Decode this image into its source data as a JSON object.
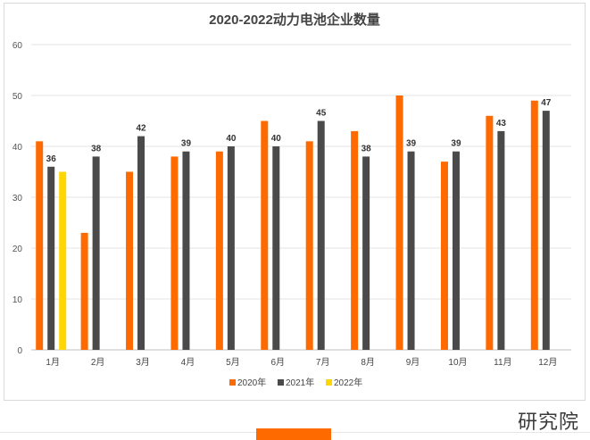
{
  "footer": {
    "brand_text": "研究院"
  },
  "chart_data": {
    "type": "bar",
    "title": "2020-2022动力电池企业数量",
    "categories": [
      "1月",
      "2月",
      "3月",
      "4月",
      "5月",
      "6月",
      "7月",
      "8月",
      "9月",
      "10月",
      "11月",
      "12月"
    ],
    "ylim": [
      0,
      60
    ],
    "yticks": [
      0,
      10,
      20,
      30,
      40,
      50,
      60
    ],
    "grid": true,
    "legend_position": "bottom",
    "series": [
      {
        "name": "2020年",
        "color": "#ff6a00",
        "labeled": false,
        "values": [
          41,
          23,
          35,
          38,
          39,
          45,
          41,
          43,
          50,
          37,
          46,
          49
        ]
      },
      {
        "name": "2021年",
        "color": "#4a4a4a",
        "labeled": true,
        "values": [
          36,
          38,
          42,
          39,
          40,
          40,
          45,
          38,
          39,
          39,
          43,
          47
        ]
      },
      {
        "name": "2022年",
        "color": "#ffd700",
        "labeled": false,
        "values": [
          35,
          null,
          null,
          null,
          null,
          null,
          null,
          null,
          null,
          null,
          null,
          null
        ]
      }
    ]
  }
}
